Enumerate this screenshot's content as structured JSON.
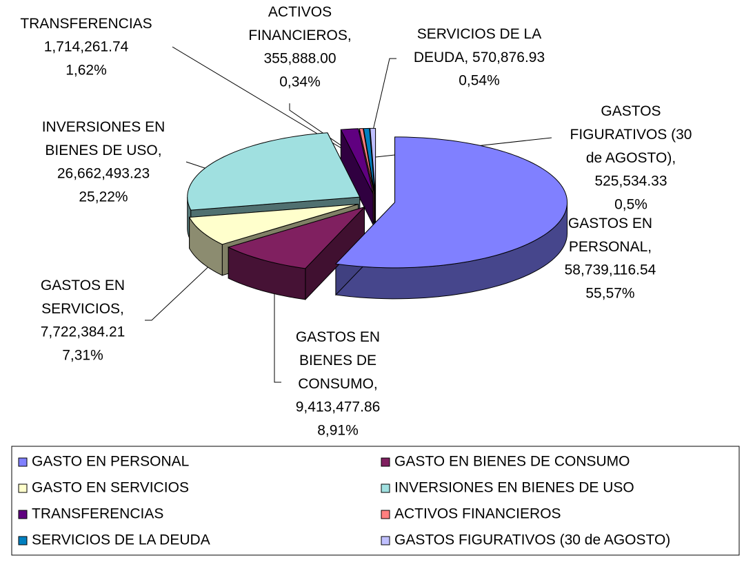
{
  "chart_data": {
    "type": "pie3d",
    "categories": [
      "GASTO EN PERSONAL",
      "GASTO EN BIENES DE CONSUMO",
      "GASTO EN SERVICIOS",
      "INVERSIONES EN BIENES DE USO",
      "TRANSFERENCIAS",
      "ACTIVOS FINANCIEROS",
      "SERVICIOS DE LA DEUDA",
      "GASTOS FIGURATIVOS (30 de AGOSTO)"
    ],
    "label_lines": [
      [
        "GASTOS EN",
        "PERSONAL,"
      ],
      [
        "GASTOS EN",
        "BIENES DE",
        "CONSUMO,"
      ],
      [
        "GASTOS EN",
        "SERVICIOS,"
      ],
      [
        "INVERSIONES EN",
        "BIENES DE USO,"
      ],
      [
        "TRANSFERENCIAS"
      ],
      [
        "ACTIVOS",
        "FINANCIEROS,"
      ],
      [
        "SERVICIOS DE LA",
        "DEUDA,"
      ],
      [
        "GASTOS",
        "FIGURATIVOS (30",
        "de AGOSTO),"
      ]
    ],
    "values": [
      58739116.54,
      9413477.86,
      7722384.21,
      26662493.23,
      1714261.74,
      355888.0,
      570876.93,
      525534.33
    ],
    "value_labels": [
      "58,739,116.54",
      "9,413,477.86",
      "7,722,384.21",
      "26,662,493.23",
      "1,714,261.74",
      "355,888.00",
      "570,876.93",
      "525,534.33"
    ],
    "percents": [
      55.57,
      8.91,
      7.31,
      25.22,
      1.62,
      0.34,
      0.54,
      0.5
    ],
    "percent_labels": [
      "55,57%",
      "8,91%",
      "7,31%",
      "25,22%",
      "1,62%",
      "0,34%",
      "0,54%",
      "0,5%"
    ],
    "colors": [
      "#8080ff",
      "#802060",
      "#ffffcc",
      "#a0e0e0",
      "#600080",
      "#ff8080",
      "#0080c0",
      "#c0c0ff"
    ],
    "legend": "bottom"
  }
}
